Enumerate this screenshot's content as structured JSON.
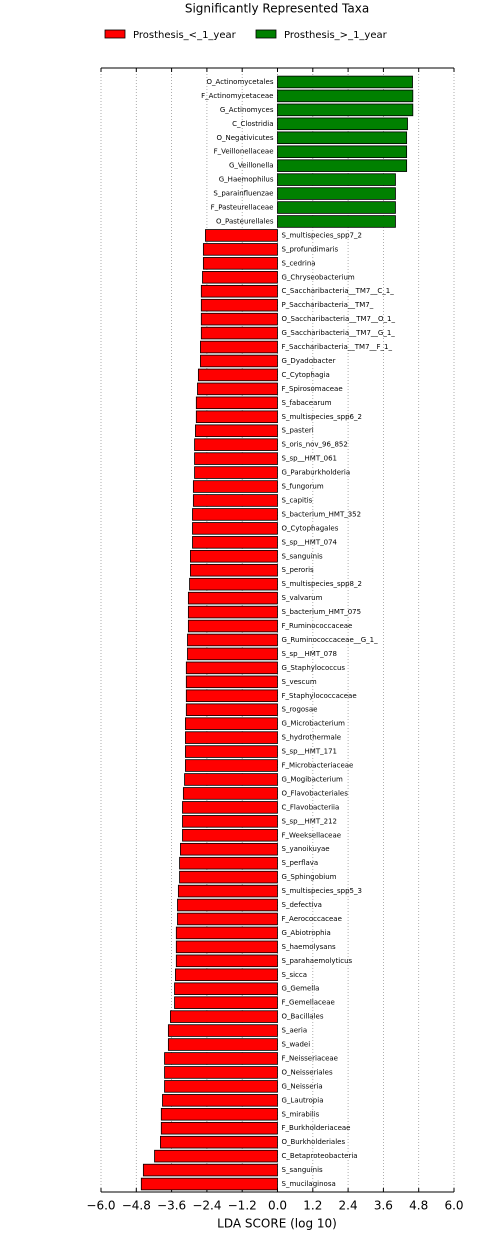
{
  "chart_data": {
    "type": "barh",
    "title": "Significantly Represented Taxa",
    "xlabel": "LDA SCORE (log 10)",
    "legend_loc": "upper center",
    "grid": true,
    "xlim": [
      -6.0,
      6.0
    ],
    "xticks": [
      {
        "value": -6.0,
        "label": "−6.0"
      },
      {
        "value": -4.8,
        "label": "−4.8"
      },
      {
        "value": -3.6,
        "label": "−3.6"
      },
      {
        "value": -2.4,
        "label": "−2.4"
      },
      {
        "value": -1.2,
        "label": "−1.2"
      },
      {
        "value": 0.0,
        "label": "0.0"
      },
      {
        "value": 1.2,
        "label": "1.2"
      },
      {
        "value": 2.4,
        "label": "2.4"
      },
      {
        "value": 3.6,
        "label": "3.6"
      },
      {
        "value": 4.8,
        "label": "4.8"
      },
      {
        "value": 6.0,
        "label": "6.0"
      }
    ],
    "categories": [
      "O_Actinomycetales",
      "F_Actinomycetaceae",
      "G_Actinomyces",
      "C_Clostridia",
      "O_Negativicutes",
      "F_Veillonellaceae",
      "G_Veillonella",
      "G_Haemophilus",
      "S_parainfluenzae",
      "F_Pasteurellaceae",
      "O_Pasteurellales",
      "S_multispecies_spp7_2",
      "S_profundimaris",
      "S_cedrina",
      "G_Chryseobacterium",
      "C_Saccharibacteria__TM7__C_1_",
      "P_Saccharibacteria__TM7_",
      "O_Saccharibacteria__TM7__O_1_",
      "G_Saccharibacteria__TM7__G_1_",
      "F_Saccharibacteria__TM7__F_1_",
      "G_Dyadobacter",
      "C_Cytophagia",
      "F_Spirosomaceae",
      "S_fabacearum",
      "S_multispecies_spp6_2",
      "S_pasteri",
      "S_oris_nov_96_852",
      "S_sp__HMT_061",
      "G_Paraburkholderia",
      "S_fungorum",
      "S_capitis",
      "S_bacterium_HMT_352",
      "O_Cytophagales",
      "S_sp__HMT_074",
      "S_sanguinis",
      "S_peroris",
      "S_multispecies_spp8_2",
      "S_valvarum",
      "S_bacterium_HMT_075",
      "F_Ruminococcaceae",
      "G_Ruminococcaceae__G_1_",
      "S_sp__HMT_078",
      "G_Staphylococcus",
      "S_vescum",
      "F_Staphylococcaceae",
      "S_rogosae",
      "G_Microbacterium",
      "S_hydrothermale",
      "S_sp__HMT_171",
      "F_Microbacteriaceae",
      "G_Mogibacterium",
      "O_Flavobacteriales",
      "C_Flavobacteriia",
      "S_sp__HMT_212",
      "F_Weeksellaceae",
      "S_yanoikuyae",
      "S_perflava",
      "G_Sphingobium",
      "S_multispecies_spp5_3",
      "S_defectiva",
      "F_Aerococcaceae",
      "G_Abiotrophia",
      "S_haemolysans",
      "S_parahaemolyticus",
      "S_sicca",
      "G_Gemella",
      "F_Gemellaceae",
      "O_Bacillales",
      "S_aeria",
      "S_wadei",
      "F_Neisseriaceae",
      "O_Neisseriales",
      "G_Neisseria",
      "G_Lautropia",
      "S_mirabilis",
      "F_Burkholderiaceae",
      "O_Burkholderiales",
      "C_Betaproteobacteria",
      "S_sanguinis",
      "S_mucilaginosa"
    ],
    "series": [
      {
        "name": "Prosthesis_<_1_year",
        "color": "#ff0000",
        "values": [
          null,
          null,
          null,
          null,
          null,
          null,
          null,
          null,
          null,
          null,
          null,
          -2.45,
          -2.52,
          -2.52,
          -2.55,
          -2.59,
          -2.59,
          -2.59,
          -2.59,
          -2.62,
          -2.62,
          -2.69,
          -2.72,
          -2.76,
          -2.76,
          -2.79,
          -2.82,
          -2.82,
          -2.82,
          -2.86,
          -2.86,
          -2.89,
          -2.89,
          -2.89,
          -2.96,
          -2.96,
          -2.99,
          -3.03,
          -3.03,
          -3.03,
          -3.06,
          -3.06,
          -3.1,
          -3.1,
          -3.1,
          -3.1,
          -3.13,
          -3.13,
          -3.13,
          -3.13,
          -3.16,
          -3.2,
          -3.23,
          -3.23,
          -3.23,
          -3.3,
          -3.33,
          -3.33,
          -3.37,
          -3.4,
          -3.4,
          -3.44,
          -3.44,
          -3.44,
          -3.47,
          -3.5,
          -3.5,
          -3.64,
          -3.71,
          -3.71,
          -3.84,
          -3.84,
          -3.84,
          -3.91,
          -3.95,
          -3.95,
          -3.98,
          -4.18,
          -4.56,
          -4.63
        ]
      },
      {
        "name": "Prosthesis_>_1_year",
        "color": "#008000",
        "values": [
          4.59,
          4.6,
          4.6,
          4.42,
          4.39,
          4.39,
          4.39,
          4.01,
          4.01,
          4.01,
          4.01,
          null,
          null,
          null,
          null,
          null,
          null,
          null,
          null,
          null,
          null,
          null,
          null,
          null,
          null,
          null,
          null,
          null,
          null,
          null,
          null,
          null,
          null,
          null,
          null,
          null,
          null,
          null,
          null,
          null,
          null,
          null,
          null,
          null,
          null,
          null,
          null,
          null,
          null,
          null,
          null,
          null,
          null,
          null,
          null,
          null,
          null,
          null,
          null,
          null,
          null,
          null,
          null,
          null,
          null,
          null,
          null,
          null,
          null,
          null,
          null,
          null,
          null,
          null,
          null,
          null,
          null,
          null,
          null,
          null
        ]
      }
    ]
  }
}
